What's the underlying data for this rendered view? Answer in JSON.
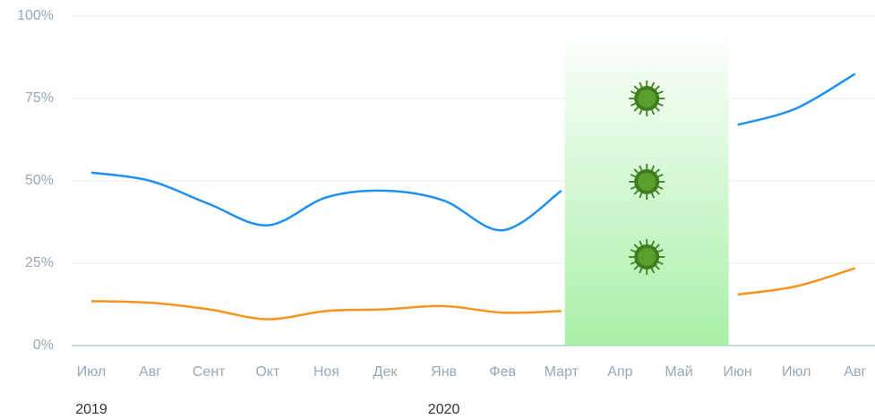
{
  "chart_data": {
    "type": "line",
    "categories": [
      "Июл",
      "Авг",
      "Сент",
      "Окт",
      "Ноя",
      "Дек",
      "Янв",
      "Фев",
      "Март",
      "Апр",
      "Май",
      "Июн",
      "Июл",
      "Авг"
    ],
    "year_labels": [
      "2019",
      null,
      null,
      null,
      null,
      null,
      "2020",
      null,
      null,
      null,
      null,
      null,
      null,
      null
    ],
    "series": [
      {
        "color": "#1e90f0",
        "values": [
          52.5,
          50,
          43,
          36.5,
          45,
          47,
          44,
          35,
          47,
          null,
          null,
          67,
          72,
          82.5
        ]
      },
      {
        "color": "#f7941d",
        "values": [
          13.5,
          13,
          11,
          8,
          10.5,
          11,
          12,
          10,
          10.5,
          null,
          null,
          15.5,
          18,
          23.5
        ]
      }
    ],
    "ylim": [
      0,
      100
    ],
    "yticks": [
      {
        "value": 0,
        "label": "0%"
      },
      {
        "value": 25,
        "label": "25%"
      },
      {
        "value": 50,
        "label": "50%"
      },
      {
        "value": 75,
        "label": "75%"
      },
      {
        "value": 100,
        "label": "100%"
      }
    ],
    "grid": true
  }
}
